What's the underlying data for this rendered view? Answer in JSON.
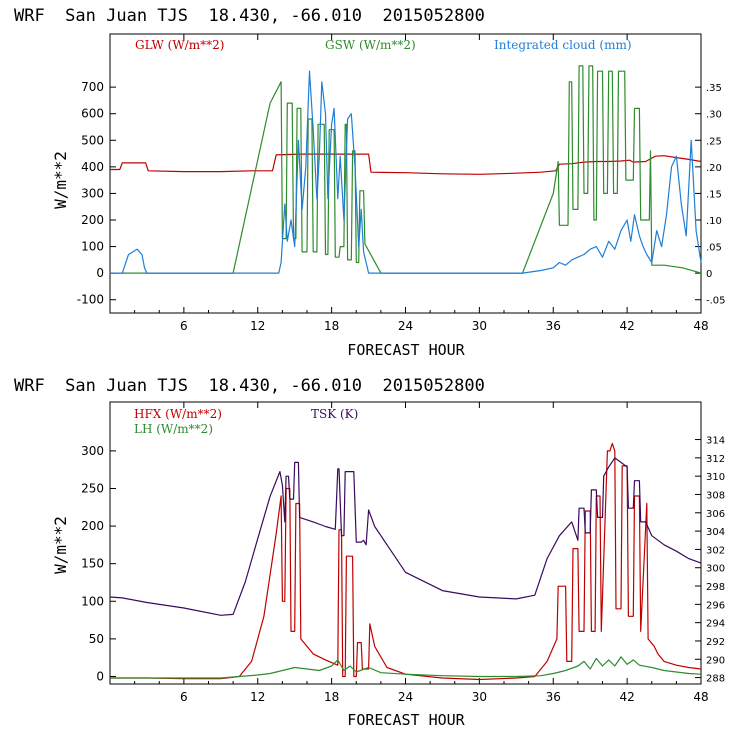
{
  "chart_data": [
    {
      "type": "line",
      "title": "WRF  San Juan TJS  18.430, -66.010  2015052800",
      "xlabel": "FORECAST HOUR",
      "ylabel": "W/m**2",
      "xlim": [
        0,
        48
      ],
      "ylim": [
        -150,
        900
      ],
      "y2lim": [
        -0.075,
        0.45
      ],
      "xticks": [
        6,
        12,
        18,
        24,
        30,
        36,
        42,
        48
      ],
      "yticks": [
        -100,
        0,
        100,
        200,
        300,
        400,
        500,
        600,
        700
      ],
      "y2ticks": [
        "-.05",
        "0",
        ".05",
        ".10",
        ".15",
        ".20",
        ".25",
        ".30",
        ".35"
      ],
      "y2tick_values": [
        -0.05,
        0,
        0.05,
        0.1,
        0.15,
        0.2,
        0.25,
        0.3,
        0.35
      ],
      "grid": false,
      "legend_position": "top",
      "series": [
        {
          "name": "GLW (W/m**2)",
          "axis": "left",
          "color": "#c00000",
          "x": [
            0,
            0.8,
            1.0,
            2.9,
            3.1,
            6,
            9,
            11.5,
            12,
            13.2,
            13.5,
            15.5,
            18,
            20.5,
            21.0,
            21.2,
            24,
            27,
            30,
            33,
            35,
            36.2,
            36.5,
            37.5,
            38.5,
            39.5,
            40.5,
            41.5,
            42.2,
            42.5,
            43.5,
            44.3,
            45,
            46,
            47,
            48
          ],
          "y": [
            390,
            390,
            415,
            415,
            385,
            382,
            382,
            385,
            385,
            385,
            445,
            448,
            448,
            448,
            448,
            380,
            378,
            374,
            372,
            376,
            380,
            385,
            410,
            412,
            418,
            420,
            420,
            422,
            425,
            418,
            420,
            440,
            442,
            435,
            428,
            420
          ]
        },
        {
          "name": "GSW (W/m**2)",
          "axis": "left",
          "color": "#2e8b2e",
          "x": [
            0,
            10,
            13.0,
            13.9,
            14.0,
            14.3,
            14.4,
            14.8,
            14.9,
            15.1,
            15.2,
            15.5,
            15.6,
            16.0,
            16.1,
            16.4,
            16.5,
            16.8,
            16.9,
            17.4,
            17.5,
            17.7,
            17.8,
            18.2,
            18.3,
            18.6,
            18.7,
            19.0,
            19.1,
            19.2,
            19.3,
            19.6,
            19.7,
            19.9,
            20.0,
            20.2,
            20.3,
            20.6,
            20.7,
            22.0,
            22.2,
            33.5,
            36.0,
            36.4,
            36.5,
            37.2,
            37.3,
            37.5,
            37.6,
            38.0,
            38.1,
            38.4,
            38.5,
            38.8,
            38.9,
            39.2,
            39.3,
            39.5,
            39.6,
            40.0,
            40.1,
            40.4,
            40.5,
            40.8,
            40.9,
            41.2,
            41.3,
            41.8,
            41.9,
            42.5,
            42.6,
            43.0,
            43.1,
            43.8,
            43.9,
            44.0,
            45.0,
            46.5,
            48
          ],
          "y": [
            0,
            0,
            640,
            720,
            130,
            130,
            640,
            640,
            130,
            130,
            620,
            620,
            80,
            80,
            580,
            580,
            80,
            80,
            560,
            560,
            70,
            70,
            540,
            540,
            60,
            60,
            100,
            100,
            560,
            560,
            50,
            50,
            460,
            460,
            40,
            40,
            310,
            310,
            110,
            0,
            0,
            0,
            300,
            420,
            180,
            180,
            720,
            720,
            240,
            240,
            780,
            780,
            300,
            300,
            780,
            780,
            200,
            200,
            760,
            760,
            300,
            300,
            760,
            760,
            300,
            300,
            760,
            760,
            350,
            350,
            620,
            620,
            200,
            200,
            460,
            30,
            30,
            20,
            0
          ]
        },
        {
          "name": "Integrated cloud (mm)",
          "axis": "right",
          "color": "#1f7fd6",
          "x": [
            0,
            1.0,
            1.5,
            2.2,
            2.6,
            2.8,
            3.0,
            13.7,
            13.9,
            14.2,
            14.4,
            14.7,
            15.0,
            15.3,
            15.6,
            15.9,
            16.2,
            16.5,
            16.8,
            17.0,
            17.2,
            17.5,
            17.7,
            18.0,
            18.2,
            18.5,
            18.7,
            19.0,
            19.3,
            19.6,
            19.9,
            20.2,
            20.4,
            20.6,
            20.8,
            21.0,
            33.5,
            35.0,
            36.0,
            36.5,
            37.0,
            37.5,
            38.0,
            38.5,
            39.0,
            39.5,
            40.0,
            40.5,
            41.0,
            41.5,
            42.0,
            42.3,
            42.6,
            43.0,
            43.3,
            43.6,
            44.0,
            44.4,
            44.8,
            45.2,
            45.6,
            46.0,
            46.4,
            46.8,
            47.2,
            47.6,
            48.0
          ],
          "y": [
            0,
            0,
            0.035,
            0.045,
            0.035,
            0.01,
            0,
            0,
            0.02,
            0.13,
            0.06,
            0.1,
            0.05,
            0.25,
            0.12,
            0.2,
            0.38,
            0.27,
            0.14,
            0.22,
            0.36,
            0.3,
            0.14,
            0.28,
            0.31,
            0.14,
            0.22,
            0.1,
            0.29,
            0.3,
            0.2,
            0.05,
            0.12,
            0.04,
            0.02,
            0,
            0,
            0.005,
            0.01,
            0.02,
            0.015,
            0.025,
            0.03,
            0.035,
            0.045,
            0.05,
            0.03,
            0.06,
            0.045,
            0.08,
            0.1,
            0.06,
            0.11,
            0.07,
            0.05,
            0.035,
            0.02,
            0.08,
            0.05,
            0.11,
            0.2,
            0.22,
            0.13,
            0.07,
            0.25,
            0.08,
            0.02
          ]
        }
      ]
    },
    {
      "type": "line",
      "title": "WRF  San Juan TJS  18.430, -66.010  2015052800",
      "xlabel": "FORECAST HOUR",
      "ylabel": "W/m**2",
      "xlim": [
        0,
        48
      ],
      "ylim": [
        -10,
        365
      ],
      "y2lim": [
        287.3,
        318.1
      ],
      "xticks": [
        6,
        12,
        18,
        24,
        30,
        36,
        42,
        48
      ],
      "yticks": [
        0,
        50,
        100,
        150,
        200,
        250,
        300
      ],
      "y2ticks": [
        "288",
        "290",
        "292",
        "294",
        "296",
        "298",
        "300",
        "302",
        "304",
        "306",
        "308",
        "310",
        "312",
        "314"
      ],
      "y2tick_values": [
        288,
        290,
        292,
        294,
        296,
        298,
        300,
        302,
        304,
        306,
        308,
        310,
        312,
        314
      ],
      "grid": false,
      "legend_position": "top-left",
      "series": [
        {
          "name": "HFX (W/m**2)",
          "axis": "left",
          "color": "#c00000",
          "x": [
            0,
            3,
            6,
            9,
            10.5,
            11.5,
            12.5,
            13.5,
            13.9,
            14.0,
            14.2,
            14.3,
            14.6,
            14.7,
            15.0,
            15.1,
            15.4,
            15.5,
            16.5,
            17.5,
            18.5,
            18.6,
            18.8,
            18.9,
            19.1,
            19.2,
            19.7,
            19.8,
            20.0,
            20.1,
            20.4,
            20.5,
            21.0,
            21.1,
            21.5,
            22.5,
            24,
            27,
            30,
            33,
            34.5,
            35.5,
            36.3,
            36.4,
            37.0,
            37.1,
            37.5,
            37.6,
            38.0,
            38.1,
            38.5,
            38.6,
            39.0,
            39.1,
            39.4,
            39.5,
            39.8,
            39.9,
            40.4,
            40.6,
            40.8,
            41.0,
            41.1,
            41.5,
            41.6,
            42.0,
            42.1,
            42.5,
            42.6,
            43.0,
            43.1,
            43.6,
            43.7,
            44.2,
            44.5,
            45,
            46,
            47,
            48
          ],
          "y": [
            -2,
            -2,
            -3,
            -3,
            0,
            20,
            80,
            190,
            240,
            100,
            100,
            250,
            250,
            60,
            60,
            230,
            230,
            50,
            30,
            22,
            15,
            195,
            195,
            0,
            0,
            160,
            160,
            0,
            0,
            45,
            45,
            10,
            10,
            70,
            40,
            12,
            3,
            -2,
            -4,
            -2,
            0,
            20,
            50,
            120,
            120,
            20,
            20,
            170,
            170,
            60,
            60,
            220,
            220,
            60,
            60,
            240,
            240,
            60,
            300,
            300,
            310,
            300,
            90,
            90,
            280,
            280,
            80,
            80,
            240,
            240,
            60,
            230,
            50,
            40,
            30,
            20,
            15,
            12,
            10
          ]
        },
        {
          "name": "LH (W/m**2)",
          "axis": "left",
          "color": "#2e8b2e",
          "x": [
            0,
            3,
            6,
            9,
            10.5,
            12,
            13,
            14,
            15,
            16,
            17,
            18,
            18.5,
            19,
            19.5,
            20,
            21,
            22,
            24,
            27,
            30,
            33,
            35,
            36,
            37,
            38,
            38.5,
            39,
            39.5,
            40,
            40.5,
            41,
            41.5,
            42,
            42.5,
            43,
            44,
            45,
            46,
            47,
            48
          ],
          "y": [
            -2,
            -2,
            -2,
            -2,
            0,
            2,
            4,
            8,
            12,
            10,
            8,
            14,
            22,
            8,
            14,
            6,
            12,
            5,
            3,
            1,
            0,
            0,
            1,
            4,
            8,
            14,
            20,
            10,
            24,
            14,
            22,
            14,
            26,
            16,
            22,
            15,
            12,
            8,
            6,
            4,
            3
          ]
        },
        {
          "name": "TSK (K)",
          "axis": "right",
          "color": "#3a0a5e",
          "x": [
            0,
            1,
            3,
            6,
            9,
            10,
            11,
            12,
            13,
            13.8,
            14.0,
            14.2,
            14.3,
            14.5,
            14.6,
            14.9,
            15.0,
            15.3,
            15.4,
            16.5,
            17.5,
            18.3,
            18.5,
            18.6,
            18.8,
            19.0,
            19.1,
            19.8,
            20.0,
            20.1,
            20.4,
            20.6,
            20.8,
            21.0,
            21.5,
            22.5,
            24,
            27,
            30,
            33,
            34.5,
            35.5,
            36.5,
            37.5,
            38.0,
            38.1,
            38.5,
            38.6,
            39.0,
            39.1,
            39.5,
            39.6,
            40.0,
            40.1,
            40.5,
            41.0,
            41.5,
            42.0,
            42.1,
            42.5,
            42.6,
            43.0,
            43.1,
            43.5,
            44,
            45,
            46,
            47,
            48
          ],
          "y": [
            296.8,
            296.7,
            296.2,
            295.6,
            294.8,
            294.9,
            298.5,
            303.2,
            307.8,
            310.5,
            309.0,
            305.0,
            310.0,
            310.0,
            307.5,
            307.5,
            311.5,
            311.5,
            305.5,
            305.0,
            304.5,
            304.2,
            310.8,
            310.8,
            303.5,
            303.5,
            310.5,
            310.5,
            302.8,
            302.8,
            302.8,
            303.0,
            302.5,
            306.3,
            304.5,
            302.5,
            299.5,
            297.5,
            296.8,
            296.6,
            297.0,
            301.0,
            303.5,
            305.0,
            303.0,
            306.5,
            306.5,
            303.8,
            303.8,
            308.5,
            308.5,
            305.5,
            305.5,
            310.0,
            311.0,
            312.0,
            311.5,
            311.0,
            306.5,
            306.5,
            309.5,
            309.5,
            305.0,
            305.0,
            303.5,
            302.5,
            301.8,
            301.0,
            300.5
          ]
        }
      ]
    }
  ]
}
